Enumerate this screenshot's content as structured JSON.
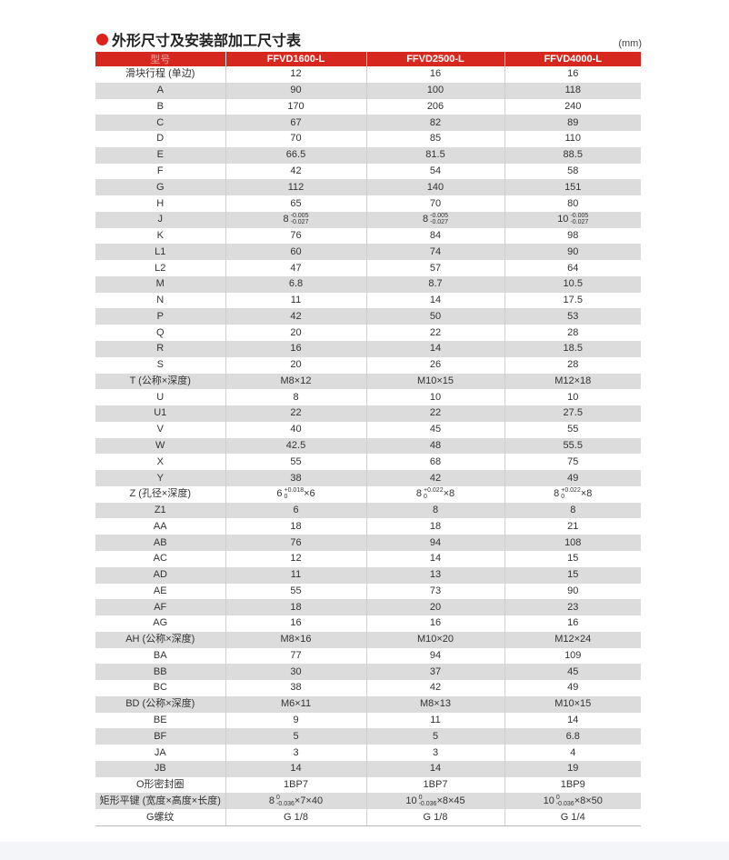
{
  "title": "外形尺寸及安装部加工尺寸表",
  "unit": "(mm)",
  "colors": {
    "accent": "#d7281f",
    "stripe": "#dcdcdc"
  },
  "headers": [
    "型号",
    "FFVD1600-L",
    "FFVD2500-L",
    "FFVD4000-L"
  ],
  "rows": [
    [
      "滑块行程 (单边)",
      "12",
      "16",
      "16"
    ],
    [
      "A",
      "90",
      "100",
      "118"
    ],
    [
      "B",
      "170",
      "206",
      "240"
    ],
    [
      "C",
      "67",
      "82",
      "89"
    ],
    [
      "D",
      "70",
      "85",
      "110"
    ],
    [
      "E",
      "66.5",
      "81.5",
      "88.5"
    ],
    [
      "F",
      "42",
      "54",
      "58"
    ],
    [
      "G",
      "112",
      "140",
      "151"
    ],
    [
      "H",
      "65",
      "70",
      "80"
    ],
    [
      "J",
      {
        "base": "8",
        "upper": "-0.005",
        "lower": "-0.027",
        "suffix": ""
      },
      {
        "base": "8",
        "upper": "-0.005",
        "lower": "-0.027",
        "suffix": ""
      },
      {
        "base": "10",
        "upper": "-0.005",
        "lower": "-0.027",
        "suffix": ""
      }
    ],
    [
      "K",
      "76",
      "84",
      "98"
    ],
    [
      "L1",
      "60",
      "74",
      "90"
    ],
    [
      "L2",
      "47",
      "57",
      "64"
    ],
    [
      "M",
      "6.8",
      "8.7",
      "10.5"
    ],
    [
      "N",
      "11",
      "14",
      "17.5"
    ],
    [
      "P",
      "42",
      "50",
      "53"
    ],
    [
      "Q",
      "20",
      "22",
      "28"
    ],
    [
      "R",
      "16",
      "14",
      "18.5"
    ],
    [
      "S",
      "20",
      "26",
      "28"
    ],
    [
      "T (公称×深度)",
      "M8×12",
      "M10×15",
      "M12×18"
    ],
    [
      "U",
      "8",
      "10",
      "10"
    ],
    [
      "U1",
      "22",
      "22",
      "27.5"
    ],
    [
      "V",
      "40",
      "45",
      "55"
    ],
    [
      "W",
      "42.5",
      "48",
      "55.5"
    ],
    [
      "X",
      "55",
      "68",
      "75"
    ],
    [
      "Y",
      "38",
      "42",
      "49"
    ],
    [
      "Z (孔径×深度)",
      {
        "base": "6",
        "upper": "+0.018",
        "lower": "0",
        "suffix": "×6"
      },
      {
        "base": "8",
        "upper": "+0.022",
        "lower": "0",
        "suffix": "×8"
      },
      {
        "base": "8",
        "upper": "+0.022",
        "lower": "0",
        "suffix": "×8"
      }
    ],
    [
      "Z1",
      "6",
      "8",
      "8"
    ],
    [
      "AA",
      "18",
      "18",
      "21"
    ],
    [
      "AB",
      "76",
      "94",
      "108"
    ],
    [
      "AC",
      "12",
      "14",
      "15"
    ],
    [
      "AD",
      "11",
      "13",
      "15"
    ],
    [
      "AE",
      "55",
      "73",
      "90"
    ],
    [
      "AF",
      "18",
      "20",
      "23"
    ],
    [
      "AG",
      "16",
      "16",
      "16"
    ],
    [
      "AH (公称×深度)",
      "M8×16",
      "M10×20",
      "M12×24"
    ],
    [
      "BA",
      "77",
      "94",
      "109"
    ],
    [
      "BB",
      "30",
      "37",
      "45"
    ],
    [
      "BC",
      "38",
      "42",
      "49"
    ],
    [
      "BD (公称×深度)",
      "M6×11",
      "M8×13",
      "M10×15"
    ],
    [
      "BE",
      "9",
      "11",
      "14"
    ],
    [
      "BF",
      "5",
      "5",
      "6.8"
    ],
    [
      "JA",
      "3",
      "3",
      "4"
    ],
    [
      "JB",
      "14",
      "14",
      "19"
    ],
    [
      "O形密封圈",
      "1BP7",
      "1BP7",
      "1BP9"
    ],
    [
      "矩形平键 (宽度×高度×长度)",
      {
        "base": "8",
        "upper": "0",
        "lower": "-0.036",
        "suffix": "×7×40"
      },
      {
        "base": "10",
        "upper": "0",
        "lower": "-0.036",
        "suffix": "×8×45"
      },
      {
        "base": "10",
        "upper": "0",
        "lower": "-0.036",
        "suffix": "×8×50"
      }
    ],
    [
      "G螺纹",
      "G 1/8",
      "G 1/8",
      "G 1/4"
    ]
  ]
}
